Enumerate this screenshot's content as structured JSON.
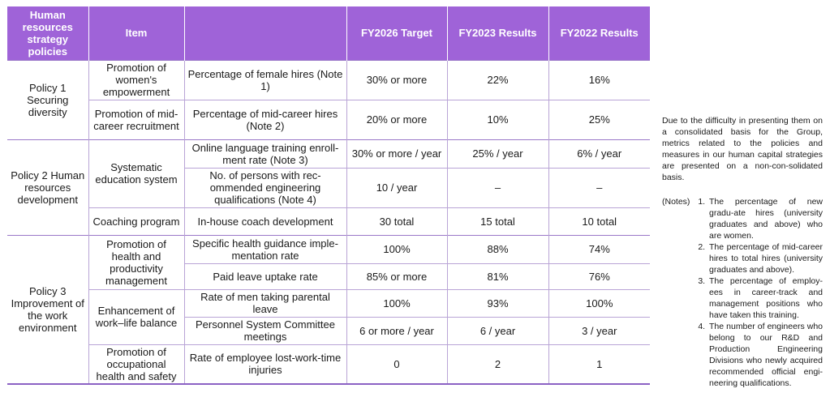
{
  "header": {
    "policies": "Human resources strategy policies",
    "item": "Item",
    "metric": "",
    "target": "FY2026 Target",
    "fy2023": "FY2023 Results",
    "fy2022": "FY2022 Results"
  },
  "policies": [
    {
      "label": "Policy 1 Securing diversity"
    },
    {
      "label": "Policy 2 Human resources development"
    },
    {
      "label": "Policy 3 Improvement of the work environment"
    }
  ],
  "items": [
    "Promotion of women's empowerment",
    "Promotion of mid-career recruitment",
    "Systematic education system",
    "Coaching program",
    "Promotion of health and productivity management",
    "Enhancement of work–life balance",
    "Promotion of occupational health and safety"
  ],
  "rows": [
    {
      "metric": "Percentage of female hires (Note 1)",
      "target": "30% or more",
      "fy2023": "22%",
      "fy2022": "16%"
    },
    {
      "metric": "Percentage of mid-career hires (Note 2)",
      "target": "20% or more",
      "fy2023": "10%",
      "fy2022": "25%"
    },
    {
      "metric": "Online language training enroll-ment rate (Note 3)",
      "target": "30% or more / year",
      "fy2023": "25% / year",
      "fy2022": "6% / year"
    },
    {
      "metric": "No. of persons with rec-ommended engineering qualifications (Note 4)",
      "target": "10 / year",
      "fy2023": "–",
      "fy2022": "–"
    },
    {
      "metric": "In-house coach development",
      "target": "30 total",
      "fy2023": "15 total",
      "fy2022": "10 total"
    },
    {
      "metric": "Specific health guidance imple-mentation rate",
      "target": "100%",
      "fy2023": "88%",
      "fy2022": "74%"
    },
    {
      "metric": "Paid leave uptake rate",
      "target": "85% or more",
      "fy2023": "81%",
      "fy2022": "76%"
    },
    {
      "metric": "Rate of men taking parental leave",
      "target": "100%",
      "fy2023": "93%",
      "fy2022": "100%"
    },
    {
      "metric": "Personnel System Committee meetings",
      "target": "6 or more / year",
      "fy2023": "6 / year",
      "fy2022": "3 / year"
    },
    {
      "metric": "Rate of employee lost-work-time injuries",
      "target": "0",
      "fy2023": "2",
      "fy2022": "1"
    }
  ],
  "side": {
    "intro": "Due to the difficulty in presenting them on a consolidated basis for the Group, metrics related to the policies and measures in our human capital strategies are presented on a non-con-solidated basis.",
    "notes_label": "(Notes)",
    "notes": [
      "The percentage of new gradu-ate hires (university graduates and above) who are women.",
      "The percentage of mid-career hires to total hires (university graduates and above).",
      "The percentage of employ-ees in career-track and management positions who have taken this training.",
      "The number of engineers who belong to our R&D and Production Engineering Divisions who newly acquired recommended official engi-neering qualifications."
    ]
  }
}
